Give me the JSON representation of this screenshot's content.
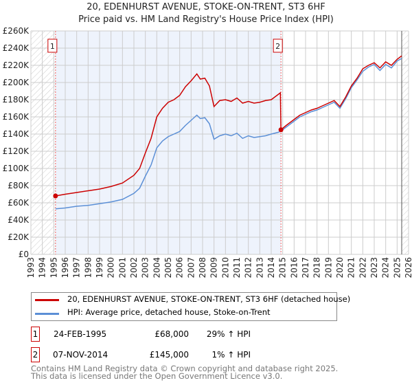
{
  "chart_data": {
    "type": "line",
    "title": "20, EDENHURST AVENUE, STOKE-ON-TRENT, ST3 6HF",
    "subtitle": "Price paid vs. HM Land Registry's House Price Index (HPI)",
    "xlim": [
      1993,
      2026
    ],
    "ylim": [
      0,
      260000
    ],
    "x_ticks": [
      "1993",
      "1994",
      "1995",
      "1996",
      "1997",
      "1998",
      "1999",
      "2000",
      "2001",
      "2002",
      "2003",
      "2004",
      "2005",
      "2006",
      "2007",
      "2008",
      "2009",
      "2010",
      "2011",
      "2012",
      "2013",
      "2014",
      "2015",
      "2016",
      "2017",
      "2018",
      "2019",
      "2020",
      "2021",
      "2022",
      "2023",
      "2024",
      "2025",
      "2026"
    ],
    "y_ticks": [
      "£0",
      "£20K",
      "£40K",
      "£60K",
      "£80K",
      "£100K",
      "£120K",
      "£140K",
      "£160K",
      "£180K",
      "£200K",
      "£220K",
      "£240K",
      "£260K"
    ],
    "series": [
      {
        "name": "20, EDENHURST AVENUE, STOKE-ON-TRENT, ST3 6HF (detached house)",
        "color": "#cc0000",
        "x": [
          1995.15,
          1996,
          1997,
          1998,
          1999,
          2000,
          2001,
          2002,
          2002.5,
          2003,
          2003.5,
          2004,
          2004.5,
          2005,
          2005.5,
          2006,
          2006.5,
          2007,
          2007.5,
          2007.8,
          2008.2,
          2008.6,
          2009,
          2009.5,
          2010,
          2010.5,
          2011,
          2011.5,
          2012,
          2012.5,
          2013,
          2013.5,
          2014,
          2014.6,
          2014.8,
          2014.85,
          2015.3,
          2015.8,
          2016,
          2016.5,
          2017,
          2017.5,
          2018,
          2018.5,
          2019,
          2019.5,
          2020,
          2020.5,
          2021,
          2021.5,
          2022,
          2022.5,
          2023,
          2023.5,
          2024,
          2024.5,
          2025,
          2025.4
        ],
        "values": [
          68000,
          70000,
          72000,
          74000,
          76000,
          79000,
          83000,
          92000,
          100000,
          118000,
          135000,
          160000,
          170000,
          177000,
          180000,
          185000,
          195000,
          202000,
          210000,
          204000,
          205000,
          196000,
          172000,
          179000,
          180000,
          178000,
          182000,
          176000,
          178000,
          176000,
          177000,
          179000,
          180000,
          186000,
          188000,
          145000,
          150000,
          155000,
          157000,
          162000,
          165000,
          168000,
          170000,
          173000,
          176000,
          179000,
          172000,
          183000,
          196000,
          205000,
          216000,
          220000,
          223000,
          217000,
          224000,
          220000,
          227000,
          231000
        ]
      },
      {
        "name": "HPI: Average price, detached house, Stoke-on-Trent",
        "color": "#5b8fd6",
        "x": [
          1995.15,
          1996,
          1997,
          1998,
          1999,
          2000,
          2001,
          2002,
          2002.5,
          2003,
          2003.5,
          2004,
          2004.5,
          2005,
          2005.5,
          2006,
          2006.5,
          2007,
          2007.5,
          2007.8,
          2008.2,
          2008.6,
          2009,
          2009.5,
          2010,
          2010.5,
          2011,
          2011.5,
          2012,
          2012.5,
          2013,
          2013.5,
          2014,
          2014.6,
          2014.85,
          2015.3,
          2015.8,
          2016,
          2016.5,
          2017,
          2017.5,
          2018,
          2018.5,
          2019,
          2019.5,
          2020,
          2020.5,
          2021,
          2021.5,
          2022,
          2022.5,
          2023,
          2023.5,
          2024,
          2024.5,
          2025,
          2025.4
        ],
        "values": [
          53000,
          54000,
          56000,
          57000,
          59000,
          61000,
          64000,
          71000,
          77000,
          91000,
          104000,
          124000,
          132000,
          137000,
          140000,
          143000,
          150000,
          156000,
          162000,
          158000,
          159000,
          152000,
          134000,
          138000,
          140000,
          138000,
          141000,
          135000,
          138000,
          136000,
          137000,
          138000,
          140000,
          142000,
          143500,
          148000,
          153000,
          155000,
          160000,
          163000,
          166000,
          168000,
          171000,
          174000,
          177000,
          170000,
          181000,
          194000,
          203000,
          213000,
          218000,
          221000,
          214000,
          221000,
          217000,
          225000,
          228000
        ]
      }
    ],
    "annotations": [
      {
        "label": "1",
        "x": 1995.15,
        "value": 68000
      },
      {
        "label": "2",
        "x": 2014.85,
        "value": 145000
      }
    ]
  },
  "transactions": [
    {
      "num": "1",
      "date": "24-FEB-1995",
      "price": "£68,000",
      "hpi": "29% ↑ HPI"
    },
    {
      "num": "2",
      "date": "07-NOV-2014",
      "price": "£145,000",
      "hpi": "1% ↑ HPI"
    }
  ],
  "footer": [
    "Contains HM Land Registry data © Crown copyright and database right 2025.",
    "This data is licensed under the Open Government Licence v3.0."
  ]
}
